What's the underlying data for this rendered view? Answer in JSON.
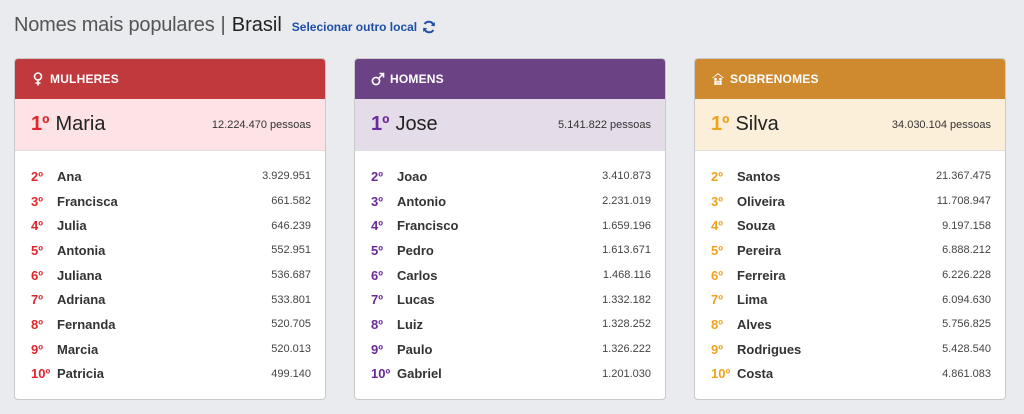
{
  "header": {
    "title": "Nomes mais populares",
    "separator": "|",
    "location": "Brasil",
    "change_location": "Selecionar outro local"
  },
  "cards": {
    "female": {
      "heading": "MULHERES",
      "icon": "female-symbol-icon",
      "color": "#c0393d",
      "top": {
        "rank": "1º",
        "name": "Maria",
        "count": "12.224.470 pessoas"
      },
      "items": [
        {
          "rank": "2º",
          "name": "Ana",
          "value": "3.929.951"
        },
        {
          "rank": "3º",
          "name": "Francisca",
          "value": "661.582"
        },
        {
          "rank": "4º",
          "name": "Julia",
          "value": "646.239"
        },
        {
          "rank": "5º",
          "name": "Antonia",
          "value": "552.951"
        },
        {
          "rank": "6º",
          "name": "Juliana",
          "value": "536.687"
        },
        {
          "rank": "7º",
          "name": "Adriana",
          "value": "533.801"
        },
        {
          "rank": "8º",
          "name": "Fernanda",
          "value": "520.705"
        },
        {
          "rank": "9º",
          "name": "Marcia",
          "value": "520.013"
        },
        {
          "rank": "10º",
          "name": "Patricia",
          "value": "499.140"
        }
      ]
    },
    "male": {
      "heading": "HOMENS",
      "icon": "male-symbol-icon",
      "color": "#6b4384",
      "top": {
        "rank": "1º",
        "name": "Jose",
        "count": "5.141.822 pessoas"
      },
      "items": [
        {
          "rank": "2º",
          "name": "Joao",
          "value": "3.410.873"
        },
        {
          "rank": "3º",
          "name": "Antonio",
          "value": "2.231.019"
        },
        {
          "rank": "4º",
          "name": "Francisco",
          "value": "1.659.196"
        },
        {
          "rank": "5º",
          "name": "Pedro",
          "value": "1.613.671"
        },
        {
          "rank": "6º",
          "name": "Carlos",
          "value": "1.468.116"
        },
        {
          "rank": "7º",
          "name": "Lucas",
          "value": "1.332.182"
        },
        {
          "rank": "8º",
          "name": "Luiz",
          "value": "1.328.252"
        },
        {
          "rank": "9º",
          "name": "Paulo",
          "value": "1.326.222"
        },
        {
          "rank": "10º",
          "name": "Gabriel",
          "value": "1.201.030"
        }
      ]
    },
    "surnames": {
      "heading": "SOBRENOMES",
      "icon": "family-icon",
      "color": "#cf8a30",
      "top": {
        "rank": "1º",
        "name": "Silva",
        "count": "34.030.104 pessoas"
      },
      "items": [
        {
          "rank": "2º",
          "name": "Santos",
          "value": "21.367.475"
        },
        {
          "rank": "3º",
          "name": "Oliveira",
          "value": "11.708.947"
        },
        {
          "rank": "4º",
          "name": "Souza",
          "value": "9.197.158"
        },
        {
          "rank": "5º",
          "name": "Pereira",
          "value": "6.888.212"
        },
        {
          "rank": "6º",
          "name": "Ferreira",
          "value": "6.226.228"
        },
        {
          "rank": "7º",
          "name": "Lima",
          "value": "6.094.630"
        },
        {
          "rank": "8º",
          "name": "Alves",
          "value": "5.756.825"
        },
        {
          "rank": "9º",
          "name": "Rodrigues",
          "value": "5.428.540"
        },
        {
          "rank": "10º",
          "name": "Costa",
          "value": "4.861.083"
        }
      ]
    }
  }
}
